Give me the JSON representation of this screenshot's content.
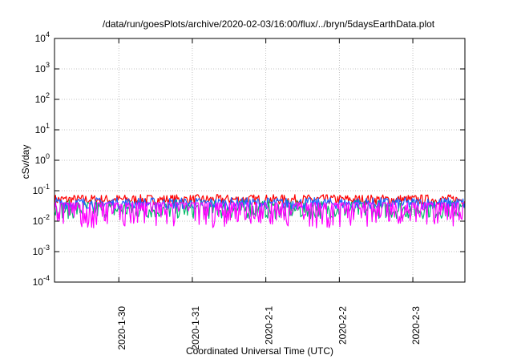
{
  "chart_data": {
    "type": "line",
    "title": "/data/run/goesPlots/archive/2020-02-03/16:00/flux/../bryn/5daysEarthData.plot",
    "xlabel": "Coordinated Universal Time (UTC)",
    "ylabel": "cSv/day",
    "y_scale": "log",
    "ylim": [
      0.0001,
      10000
    ],
    "xlim": [
      "2020-01-29 03:00",
      "2020-02-03 17:00"
    ],
    "x_ticks": [
      "2020-1-30",
      "2020-1-31",
      "2020-2-1",
      "2020-2-2",
      "2020-2-3"
    ],
    "y_ticks": [
      {
        "base": "10",
        "exp": "-4",
        "value": 0.0001
      },
      {
        "base": "10",
        "exp": "-3",
        "value": 0.001
      },
      {
        "base": "10",
        "exp": "-2",
        "value": 0.01
      },
      {
        "base": "10",
        "exp": "-1",
        "value": 0.1
      },
      {
        "base": "10",
        "exp": "0",
        "value": 1
      },
      {
        "base": "10",
        "exp": "1",
        "value": 10
      },
      {
        "base": "10",
        "exp": "2",
        "value": 100
      },
      {
        "base": "10",
        "exp": "3",
        "value": 1000
      },
      {
        "base": "10",
        "exp": "4",
        "value": 10000
      }
    ],
    "grid": true,
    "series": [
      {
        "color": "#ff0000",
        "band": [
          0.035,
          0.075
        ]
      },
      {
        "color": "#00bb66",
        "band": [
          0.012,
          0.05
        ]
      },
      {
        "color": "#1e64ff",
        "band": [
          0.025,
          0.06
        ]
      },
      {
        "color": "#ff00ff",
        "band": [
          0.006,
          0.04
        ]
      }
    ]
  }
}
